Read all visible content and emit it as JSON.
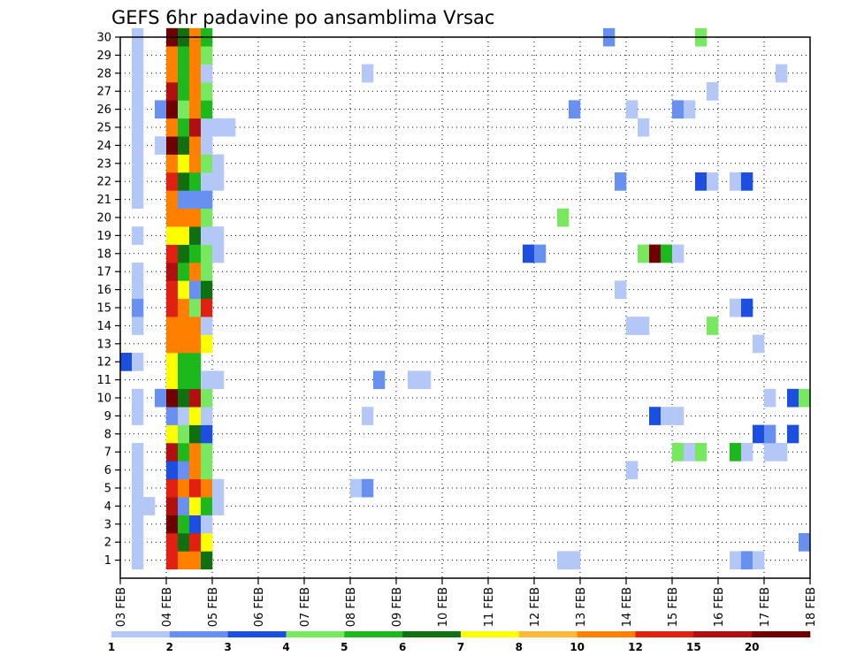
{
  "chart_data": {
    "type": "heatmap",
    "title": "GEFS 6hr padavine po ansamblima Vrsac",
    "x_ticks": [
      "03 FEB",
      "04 FEB",
      "05 FEB",
      "06 FEB",
      "07 FEB",
      "08 FEB",
      "09 FEB",
      "10 FEB",
      "11 FEB",
      "12 FEB",
      "13 FEB",
      "14 FEB",
      "15 FEB",
      "16 FEB",
      "17 FEB",
      "18 FEB"
    ],
    "y_ticks": [
      "1",
      "2",
      "3",
      "4",
      "5",
      "6",
      "7",
      "8",
      "9",
      "10",
      "11",
      "12",
      "13",
      "14",
      "15",
      "16",
      "17",
      "18",
      "19",
      "20",
      "21",
      "22",
      "23",
      "24",
      "25",
      "26",
      "27",
      "28",
      "29",
      "30"
    ],
    "xlim": [
      "03 FEB 00Z",
      "18 FEB 00Z"
    ],
    "ylim": [
      0,
      30
    ],
    "grid": true,
    "legend": "bottom",
    "colorbar": {
      "labels": [
        "1",
        "2",
        "3",
        "4",
        "5",
        "6",
        "7",
        "8",
        "10",
        "12",
        "15",
        "20"
      ],
      "colors": [
        "#b4c8f8",
        "#6890f0",
        "#1c4ee0",
        "#78e860",
        "#1cb81c",
        "#107010",
        "#ffff00",
        "#ffb838",
        "#ff7f00",
        "#e02010",
        "#b01010",
        "#700000"
      ]
    },
    "cells": [
      {
        "m": 1,
        "t": 1,
        "c": 0
      },
      {
        "m": 1,
        "t": 4,
        "c": 9
      },
      {
        "m": 1,
        "t": 5,
        "c": 8
      },
      {
        "m": 1,
        "t": 6,
        "c": 8
      },
      {
        "m": 1,
        "t": 7,
        "c": 5
      },
      {
        "m": 1,
        "t": 38,
        "c": 0
      },
      {
        "m": 1,
        "t": 39,
        "c": 0
      },
      {
        "m": 1,
        "t": 53,
        "c": 0
      },
      {
        "m": 1,
        "t": 54,
        "c": 1
      },
      {
        "m": 1,
        "t": 55,
        "c": 0
      },
      {
        "m": 2,
        "t": 1,
        "c": 0
      },
      {
        "m": 2,
        "t": 4,
        "c": 9
      },
      {
        "m": 2,
        "t": 5,
        "c": 5
      },
      {
        "m": 2,
        "t": 6,
        "c": 9
      },
      {
        "m": 2,
        "t": 7,
        "c": 6
      },
      {
        "m": 2,
        "t": 59,
        "c": 1
      },
      {
        "m": 3,
        "t": 1,
        "c": 0
      },
      {
        "m": 3,
        "t": 4,
        "c": 11
      },
      {
        "m": 3,
        "t": 5,
        "c": 4
      },
      {
        "m": 3,
        "t": 6,
        "c": 2
      },
      {
        "m": 3,
        "t": 7,
        "c": 0
      },
      {
        "m": 4,
        "t": 1,
        "c": 0
      },
      {
        "m": 4,
        "t": 2,
        "c": 0
      },
      {
        "m": 4,
        "t": 4,
        "c": 10
      },
      {
        "m": 4,
        "t": 5,
        "c": 1
      },
      {
        "m": 4,
        "t": 6,
        "c": 6
      },
      {
        "m": 4,
        "t": 7,
        "c": 4
      },
      {
        "m": 4,
        "t": 8,
        "c": 0
      },
      {
        "m": 5,
        "t": 1,
        "c": 0
      },
      {
        "m": 5,
        "t": 4,
        "c": 9
      },
      {
        "m": 5,
        "t": 5,
        "c": 8
      },
      {
        "m": 5,
        "t": 6,
        "c": 9
      },
      {
        "m": 5,
        "t": 7,
        "c": 8
      },
      {
        "m": 5,
        "t": 8,
        "c": 0
      },
      {
        "m": 5,
        "t": 20,
        "c": 0
      },
      {
        "m": 5,
        "t": 21,
        "c": 1
      },
      {
        "m": 6,
        "t": 1,
        "c": 0
      },
      {
        "m": 6,
        "t": 4,
        "c": 2
      },
      {
        "m": 6,
        "t": 5,
        "c": 1
      },
      {
        "m": 6,
        "t": 6,
        "c": 8
      },
      {
        "m": 6,
        "t": 7,
        "c": 3
      },
      {
        "m": 6,
        "t": 44,
        "c": 0
      },
      {
        "m": 7,
        "t": 1,
        "c": 0
      },
      {
        "m": 7,
        "t": 4,
        "c": 10
      },
      {
        "m": 7,
        "t": 5,
        "c": 4
      },
      {
        "m": 7,
        "t": 6,
        "c": 8
      },
      {
        "m": 7,
        "t": 7,
        "c": 3
      },
      {
        "m": 7,
        "t": 48,
        "c": 3
      },
      {
        "m": 7,
        "t": 49,
        "c": 0
      },
      {
        "m": 7,
        "t": 50,
        "c": 3
      },
      {
        "m": 7,
        "t": 53,
        "c": 4
      },
      {
        "m": 7,
        "t": 54,
        "c": 0
      },
      {
        "m": 7,
        "t": 56,
        "c": 0
      },
      {
        "m": 7,
        "t": 57,
        "c": 0
      },
      {
        "m": 8,
        "t": 4,
        "c": 6
      },
      {
        "m": 8,
        "t": 5,
        "c": 3
      },
      {
        "m": 8,
        "t": 6,
        "c": 5
      },
      {
        "m": 8,
        "t": 7,
        "c": 2
      },
      {
        "m": 8,
        "t": 55,
        "c": 2
      },
      {
        "m": 8,
        "t": 56,
        "c": 1
      },
      {
        "m": 8,
        "t": 58,
        "c": 2
      },
      {
        "m": 9,
        "t": 1,
        "c": 0
      },
      {
        "m": 9,
        "t": 4,
        "c": 1
      },
      {
        "m": 9,
        "t": 5,
        "c": 0
      },
      {
        "m": 9,
        "t": 6,
        "c": 6
      },
      {
        "m": 9,
        "t": 7,
        "c": 0
      },
      {
        "m": 9,
        "t": 21,
        "c": 0
      },
      {
        "m": 9,
        "t": 46,
        "c": 2
      },
      {
        "m": 9,
        "t": 47,
        "c": 0
      },
      {
        "m": 9,
        "t": 48,
        "c": 0
      },
      {
        "m": 10,
        "t": 1,
        "c": 0
      },
      {
        "m": 10,
        "t": 3,
        "c": 1
      },
      {
        "m": 10,
        "t": 4,
        "c": 11
      },
      {
        "m": 10,
        "t": 5,
        "c": 5
      },
      {
        "m": 10,
        "t": 6,
        "c": 10
      },
      {
        "m": 10,
        "t": 7,
        "c": 3
      },
      {
        "m": 10,
        "t": 56,
        "c": 0
      },
      {
        "m": 10,
        "t": 58,
        "c": 2
      },
      {
        "m": 10,
        "t": 59,
        "c": 3
      },
      {
        "m": 11,
        "t": 4,
        "c": 6
      },
      {
        "m": 11,
        "t": 5,
        "c": 4
      },
      {
        "m": 11,
        "t": 6,
        "c": 4
      },
      {
        "m": 11,
        "t": 7,
        "c": 0
      },
      {
        "m": 11,
        "t": 8,
        "c": 0
      },
      {
        "m": 11,
        "t": 22,
        "c": 1
      },
      {
        "m": 11,
        "t": 25,
        "c": 0
      },
      {
        "m": 11,
        "t": 26,
        "c": 0
      },
      {
        "m": 12,
        "t": 0,
        "c": 2
      },
      {
        "m": 12,
        "t": 1,
        "c": 0
      },
      {
        "m": 12,
        "t": 4,
        "c": 6
      },
      {
        "m": 12,
        "t": 5,
        "c": 4
      },
      {
        "m": 12,
        "t": 6,
        "c": 4
      },
      {
        "m": 13,
        "t": 4,
        "c": 8
      },
      {
        "m": 13,
        "t": 5,
        "c": 8
      },
      {
        "m": 13,
        "t": 6,
        "c": 8
      },
      {
        "m": 13,
        "t": 7,
        "c": 6
      },
      {
        "m": 13,
        "t": 55,
        "c": 0
      },
      {
        "m": 14,
        "t": 1,
        "c": 0
      },
      {
        "m": 14,
        "t": 4,
        "c": 8
      },
      {
        "m": 14,
        "t": 5,
        "c": 8
      },
      {
        "m": 14,
        "t": 6,
        "c": 8
      },
      {
        "m": 14,
        "t": 7,
        "c": 0
      },
      {
        "m": 14,
        "t": 44,
        "c": 0
      },
      {
        "m": 14,
        "t": 45,
        "c": 0
      },
      {
        "m": 14,
        "t": 51,
        "c": 3
      },
      {
        "m": 15,
        "t": 1,
        "c": 1
      },
      {
        "m": 15,
        "t": 4,
        "c": 9
      },
      {
        "m": 15,
        "t": 5,
        "c": 8
      },
      {
        "m": 15,
        "t": 6,
        "c": 3
      },
      {
        "m": 15,
        "t": 7,
        "c": 9
      },
      {
        "m": 15,
        "t": 53,
        "c": 0
      },
      {
        "m": 15,
        "t": 54,
        "c": 2
      },
      {
        "m": 16,
        "t": 1,
        "c": 0
      },
      {
        "m": 16,
        "t": 4,
        "c": 9
      },
      {
        "m": 16,
        "t": 5,
        "c": 6
      },
      {
        "m": 16,
        "t": 6,
        "c": 1
      },
      {
        "m": 16,
        "t": 7,
        "c": 5
      },
      {
        "m": 16,
        "t": 43,
        "c": 0
      },
      {
        "m": 17,
        "t": 1,
        "c": 0
      },
      {
        "m": 17,
        "t": 4,
        "c": 10
      },
      {
        "m": 17,
        "t": 5,
        "c": 4
      },
      {
        "m": 17,
        "t": 6,
        "c": 8
      },
      {
        "m": 17,
        "t": 7,
        "c": 3
      },
      {
        "m": 18,
        "t": 4,
        "c": 9
      },
      {
        "m": 18,
        "t": 5,
        "c": 5
      },
      {
        "m": 18,
        "t": 6,
        "c": 4
      },
      {
        "m": 18,
        "t": 7,
        "c": 3
      },
      {
        "m": 18,
        "t": 8,
        "c": 0
      },
      {
        "m": 18,
        "t": 35,
        "c": 2
      },
      {
        "m": 18,
        "t": 36,
        "c": 1
      },
      {
        "m": 18,
        "t": 45,
        "c": 3
      },
      {
        "m": 18,
        "t": 46,
        "c": 11
      },
      {
        "m": 18,
        "t": 47,
        "c": 4
      },
      {
        "m": 18,
        "t": 48,
        "c": 0
      },
      {
        "m": 19,
        "t": 1,
        "c": 0
      },
      {
        "m": 19,
        "t": 4,
        "c": 6
      },
      {
        "m": 19,
        "t": 5,
        "c": 6
      },
      {
        "m": 19,
        "t": 6,
        "c": 5
      },
      {
        "m": 19,
        "t": 7,
        "c": 0
      },
      {
        "m": 19,
        "t": 8,
        "c": 0
      },
      {
        "m": 20,
        "t": 4,
        "c": 8
      },
      {
        "m": 20,
        "t": 5,
        "c": 8
      },
      {
        "m": 20,
        "t": 6,
        "c": 8
      },
      {
        "m": 20,
        "t": 7,
        "c": 3
      },
      {
        "m": 20,
        "t": 38,
        "c": 3
      },
      {
        "m": 21,
        "t": 1,
        "c": 0
      },
      {
        "m": 21,
        "t": 4,
        "c": 8
      },
      {
        "m": 21,
        "t": 5,
        "c": 1
      },
      {
        "m": 21,
        "t": 6,
        "c": 1
      },
      {
        "m": 21,
        "t": 7,
        "c": 1
      },
      {
        "m": 22,
        "t": 1,
        "c": 0
      },
      {
        "m": 22,
        "t": 4,
        "c": 9
      },
      {
        "m": 22,
        "t": 5,
        "c": 5
      },
      {
        "m": 22,
        "t": 6,
        "c": 4
      },
      {
        "m": 22,
        "t": 7,
        "c": 0
      },
      {
        "m": 22,
        "t": 8,
        "c": 0
      },
      {
        "m": 22,
        "t": 43,
        "c": 1
      },
      {
        "m": 22,
        "t": 50,
        "c": 2
      },
      {
        "m": 22,
        "t": 51,
        "c": 0
      },
      {
        "m": 22,
        "t": 53,
        "c": 0
      },
      {
        "m": 22,
        "t": 54,
        "c": 2
      },
      {
        "m": 23,
        "t": 1,
        "c": 0
      },
      {
        "m": 23,
        "t": 4,
        "c": 8
      },
      {
        "m": 23,
        "t": 5,
        "c": 6
      },
      {
        "m": 23,
        "t": 6,
        "c": 8
      },
      {
        "m": 23,
        "t": 7,
        "c": 3
      },
      {
        "m": 23,
        "t": 8,
        "c": 0
      },
      {
        "m": 24,
        "t": 1,
        "c": 0
      },
      {
        "m": 24,
        "t": 3,
        "c": 0
      },
      {
        "m": 24,
        "t": 4,
        "c": 11
      },
      {
        "m": 24,
        "t": 5,
        "c": 5
      },
      {
        "m": 24,
        "t": 6,
        "c": 8
      },
      {
        "m": 24,
        "t": 7,
        "c": 0
      },
      {
        "m": 25,
        "t": 1,
        "c": 0
      },
      {
        "m": 25,
        "t": 4,
        "c": 8
      },
      {
        "m": 25,
        "t": 5,
        "c": 4
      },
      {
        "m": 25,
        "t": 6,
        "c": 10
      },
      {
        "m": 25,
        "t": 7,
        "c": 0
      },
      {
        "m": 25,
        "t": 8,
        "c": 0
      },
      {
        "m": 25,
        "t": 9,
        "c": 0
      },
      {
        "m": 25,
        "t": 45,
        "c": 0
      },
      {
        "m": 26,
        "t": 1,
        "c": 0
      },
      {
        "m": 26,
        "t": 3,
        "c": 1
      },
      {
        "m": 26,
        "t": 4,
        "c": 11
      },
      {
        "m": 26,
        "t": 5,
        "c": 3
      },
      {
        "m": 26,
        "t": 6,
        "c": 8
      },
      {
        "m": 26,
        "t": 7,
        "c": 4
      },
      {
        "m": 26,
        "t": 39,
        "c": 1
      },
      {
        "m": 26,
        "t": 44,
        "c": 0
      },
      {
        "m": 26,
        "t": 48,
        "c": 1
      },
      {
        "m": 26,
        "t": 49,
        "c": 0
      },
      {
        "m": 27,
        "t": 1,
        "c": 0
      },
      {
        "m": 27,
        "t": 4,
        "c": 10
      },
      {
        "m": 27,
        "t": 5,
        "c": 4
      },
      {
        "m": 27,
        "t": 6,
        "c": 8
      },
      {
        "m": 27,
        "t": 7,
        "c": 3
      },
      {
        "m": 27,
        "t": 51,
        "c": 0
      },
      {
        "m": 28,
        "t": 1,
        "c": 0
      },
      {
        "m": 28,
        "t": 4,
        "c": 8
      },
      {
        "m": 28,
        "t": 5,
        "c": 4
      },
      {
        "m": 28,
        "t": 6,
        "c": 8
      },
      {
        "m": 28,
        "t": 7,
        "c": 0
      },
      {
        "m": 28,
        "t": 21,
        "c": 0
      },
      {
        "m": 28,
        "t": 57,
        "c": 0
      },
      {
        "m": 29,
        "t": 1,
        "c": 0
      },
      {
        "m": 29,
        "t": 4,
        "c": 8
      },
      {
        "m": 29,
        "t": 5,
        "c": 4
      },
      {
        "m": 29,
        "t": 6,
        "c": 8
      },
      {
        "m": 29,
        "t": 7,
        "c": 3
      },
      {
        "m": 30,
        "t": 1,
        "c": 0
      },
      {
        "m": 30,
        "t": 4,
        "c": 11
      },
      {
        "m": 30,
        "t": 5,
        "c": 5
      },
      {
        "m": 30,
        "t": 6,
        "c": 8
      },
      {
        "m": 30,
        "t": 7,
        "c": 4
      },
      {
        "m": 30,
        "t": 42,
        "c": 1
      },
      {
        "m": 30,
        "t": 50,
        "c": 3
      }
    ]
  }
}
